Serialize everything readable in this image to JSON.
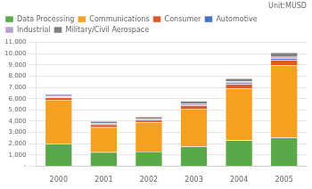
{
  "chart_data": {
    "type": "bar",
    "stacked": true,
    "subtitle": "Unit:MUSD",
    "categories": [
      "2000",
      "2001",
      "2002",
      "2003",
      "2004",
      "2005"
    ],
    "series": [
      {
        "name": "Data Processing",
        "color": "#5ba84a",
        "values": [
          2000,
          1250,
          1300,
          1750,
          2300,
          2550
        ]
      },
      {
        "name": "Communications",
        "color": "#f5a020",
        "values": [
          3900,
          2200,
          2600,
          3350,
          4600,
          6400
        ]
      },
      {
        "name": "Consumer",
        "color": "#e05828",
        "values": [
          200,
          250,
          200,
          300,
          400,
          500
        ]
      },
      {
        "name": "Automotive",
        "color": "#4472c4",
        "values": [
          80,
          80,
          80,
          100,
          120,
          150
        ]
      },
      {
        "name": "Industrial",
        "color": "#b8a0cc",
        "values": [
          60,
          60,
          60,
          80,
          100,
          120
        ]
      },
      {
        "name": "Military/Civil Aerospace",
        "color": "#808080",
        "values": [
          160,
          160,
          160,
          220,
          280,
          380
        ]
      }
    ],
    "ylim": [
      0,
      11000
    ],
    "yticks": [
      {
        "value": 0,
        "label": "-"
      },
      {
        "value": 1000,
        "label": "1,000"
      },
      {
        "value": 2000,
        "label": "2,000"
      },
      {
        "value": 3000,
        "label": "3,000"
      },
      {
        "value": 4000,
        "label": "4,000"
      },
      {
        "value": 5000,
        "label": "5,000"
      },
      {
        "value": 6000,
        "label": "6,000"
      },
      {
        "value": 7000,
        "label": "7,000"
      },
      {
        "value": 8000,
        "label": "8,000"
      },
      {
        "value": 9000,
        "label": "9,000"
      },
      {
        "value": 10000,
        "label": "10,000"
      },
      {
        "value": 11000,
        "label": "11,000"
      }
    ],
    "grid": true,
    "legend": "upper left"
  }
}
